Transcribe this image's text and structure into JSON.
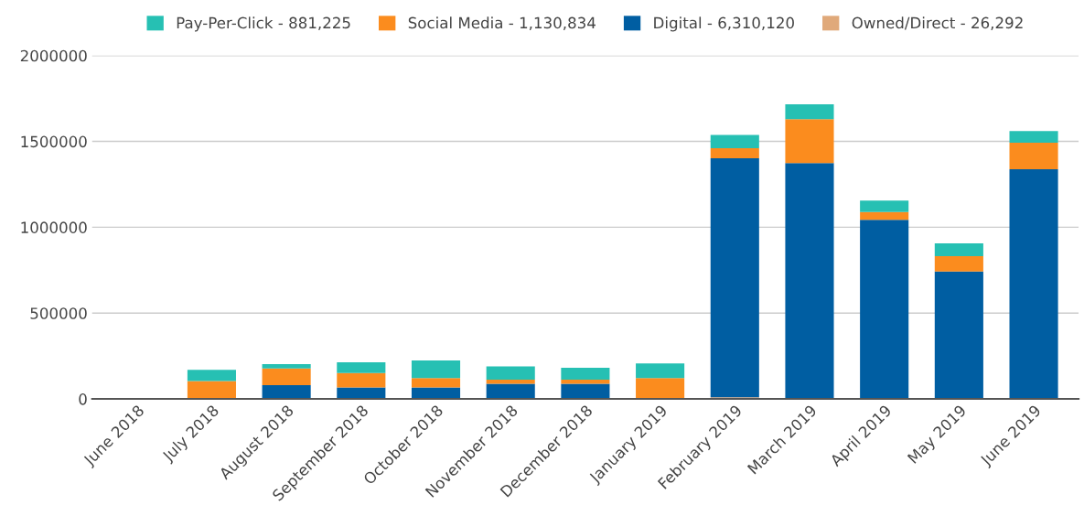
{
  "chart_data": {
    "type": "bar",
    "stacked": true,
    "categories": [
      "June 2018",
      "July 2018",
      "August 2018",
      "September 2018",
      "October 2018",
      "November 2018",
      "December 2018",
      "January 2019",
      "February 2019",
      "March 2019",
      "April 2019",
      "May 2019",
      "June 2019"
    ],
    "series": [
      {
        "name": "Owned/Direct - 26,292",
        "color": "#e0a97a",
        "values": [
          null,
          null,
          6000,
          null,
          null,
          null,
          null,
          null,
          10000,
          null,
          null,
          null,
          null
        ]
      },
      {
        "name": "Digital - 6,310,120",
        "color": "#005ea2",
        "values": [
          0,
          0,
          74000,
          67000,
          67000,
          88000,
          88000,
          0,
          1392000,
          1374000,
          1044000,
          743000,
          1338000
        ]
      },
      {
        "name": "Social Media - 1,130,834",
        "color": "#fb8c1e",
        "values": [
          0,
          104000,
          98000,
          84000,
          54000,
          24000,
          24000,
          121000,
          59000,
          256000,
          45000,
          88000,
          154000
        ]
      },
      {
        "name": "Pay-Per-Click - 881,225",
        "color": "#26c0b3",
        "values": [
          0,
          66000,
          25000,
          63000,
          103000,
          78000,
          69000,
          86000,
          77000,
          86000,
          66000,
          75000,
          68000
        ]
      }
    ],
    "ylim": [
      0,
      2000000
    ],
    "yticks": [
      0,
      500000,
      1000000,
      1500000,
      2000000
    ],
    "grid": "y",
    "legend": "top"
  }
}
